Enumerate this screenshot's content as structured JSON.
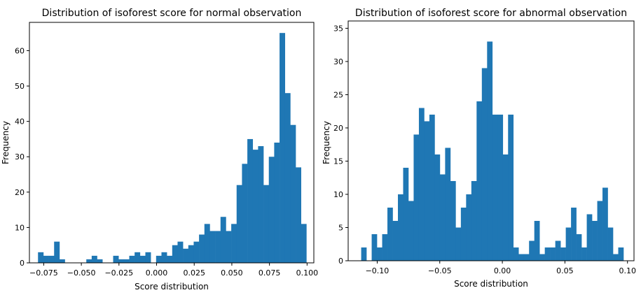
{
  "chart_data": [
    {
      "type": "bar",
      "title": "Distribution of isoforest score for normal observation",
      "xlabel": "Score distribution",
      "ylabel": "Frequency",
      "xlim": [
        -0.0845,
        0.1045
      ],
      "ylim": [
        0,
        68
      ],
      "xticks": [
        -0.075,
        -0.05,
        -0.025,
        0.0,
        0.025,
        0.05,
        0.075,
        0.1
      ],
      "xtick_labels": [
        "−0.075",
        "−0.050",
        "−0.025",
        "0.000",
        "0.025",
        "0.050",
        "0.075",
        "0.100"
      ],
      "yticks": [
        0,
        10,
        20,
        30,
        40,
        50,
        60
      ],
      "ytick_labels": [
        "0",
        "10",
        "20",
        "30",
        "40",
        "50",
        "60"
      ],
      "bin_start": -0.0788,
      "bin_width": 0.003567,
      "values": [
        3,
        2,
        2,
        6,
        1,
        0,
        0,
        0,
        0,
        1,
        2,
        1,
        0,
        0,
        2,
        1,
        1,
        2,
        3,
        2,
        3,
        0,
        2,
        3,
        2,
        5,
        6,
        4,
        5,
        6,
        8,
        11,
        9,
        9,
        13,
        9,
        11,
        22,
        28,
        35,
        32,
        33,
        22,
        30,
        34,
        65,
        48,
        39,
        27,
        11
      ]
    },
    {
      "type": "bar",
      "title": "Distribution of isoforest score for abnormal observation",
      "xlabel": "Score distribution",
      "ylabel": "Frequency",
      "xlim": [
        -0.1232,
        0.1052
      ],
      "ylim": [
        0,
        36.1
      ],
      "xticks": [
        -0.1,
        -0.05,
        0.0,
        0.05,
        0.1
      ],
      "xtick_labels": [
        "−0.10",
        "−0.05",
        "0.00",
        "0.05",
        "0.10"
      ],
      "yticks": [
        0,
        5,
        10,
        15,
        20,
        25,
        30,
        35
      ],
      "ytick_labels": [
        "0",
        "5",
        "10",
        "15",
        "20",
        "25",
        "30",
        "35"
      ],
      "bin_start": -0.1128,
      "bin_width": 0.004192,
      "values": [
        2,
        0,
        4,
        2,
        4,
        8,
        6,
        10,
        14,
        9,
        19,
        23,
        21,
        22,
        16,
        13,
        17,
        12,
        5,
        8,
        10,
        12,
        24,
        29,
        33,
        22,
        22,
        16,
        22,
        2,
        1,
        1,
        3,
        6,
        1,
        2,
        2,
        3,
        2,
        5,
        8,
        4,
        2,
        7,
        6,
        9,
        11,
        5,
        1,
        2
      ]
    }
  ]
}
